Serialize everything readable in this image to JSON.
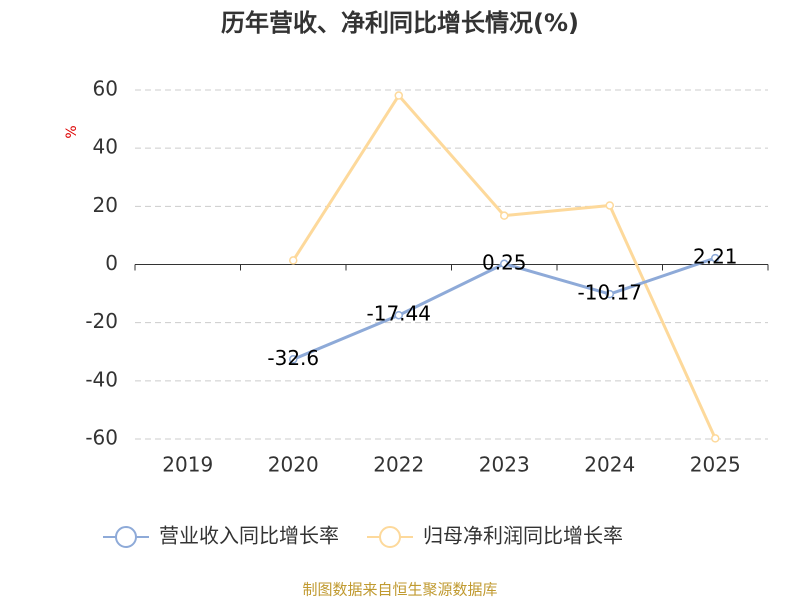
{
  "chart_data": {
    "type": "line",
    "title": "历年营收、净利同比增长情况(%)",
    "y_label": "%",
    "source": "制图数据来自恒生聚源数据库",
    "categories": [
      "2019",
      "2020",
      "2022",
      "2023",
      "2024",
      "2025"
    ],
    "series": [
      {
        "name": "营业收入同比增长率",
        "color": "#8eaad8",
        "values": [
          null,
          -32.6,
          -17.44,
          0.25,
          -10.17,
          2.21
        ],
        "show_labels": true
      },
      {
        "name": "归母净利润同比增长率",
        "color": "#fdd99b",
        "values": [
          null,
          1.4,
          58.1,
          16.8,
          20.3,
          -59.8
        ],
        "show_labels": false
      }
    ],
    "ylim": [
      -60,
      60
    ],
    "yticks": [
      -60,
      -40,
      -20,
      0,
      20,
      40,
      60
    ],
    "grid": true
  }
}
